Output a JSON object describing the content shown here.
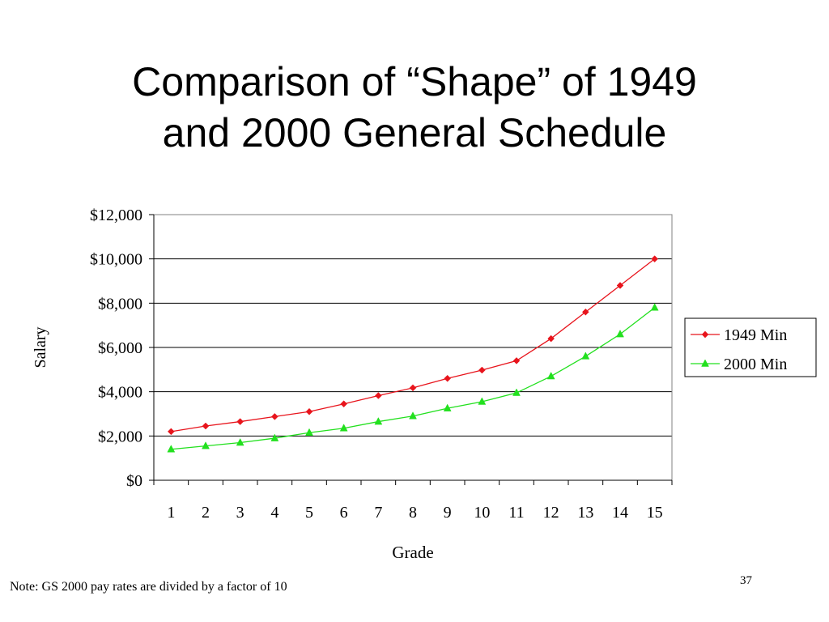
{
  "slide": {
    "title_lines": [
      "Comparison of “Shape” of 1949",
      "and 2000 General Schedule"
    ],
    "note": "Note:  GS 2000 pay rates are divided by a factor of 10",
    "page_number": "37"
  },
  "chart_data": {
    "type": "line",
    "title": "",
    "xlabel": "Grade",
    "ylabel": "Salary",
    "categories": [
      "1",
      "2",
      "3",
      "4",
      "5",
      "6",
      "7",
      "8",
      "9",
      "10",
      "11",
      "12",
      "13",
      "14",
      "15"
    ],
    "y_ticks": [
      "$0",
      "$2,000",
      "$4,000",
      "$6,000",
      "$8,000",
      "$10,000",
      "$12,000"
    ],
    "y_tick_values": [
      0,
      2000,
      4000,
      6000,
      8000,
      10000,
      12000
    ],
    "ylim": [
      0,
      12000
    ],
    "grid": "horizontal",
    "legend": "right",
    "series": [
      {
        "name": "1949 Min",
        "color": "#e8141c",
        "marker": "diamond",
        "values": [
          2200,
          2450,
          2650,
          2875,
          3100,
          3450,
          3825,
          4175,
          4600,
          4975,
          5400,
          6400,
          7600,
          8800,
          10000
        ]
      },
      {
        "name": "2000 Min",
        "color": "#22e01e",
        "marker": "triangle",
        "values": [
          1400,
          1550,
          1700,
          1900,
          2150,
          2350,
          2650,
          2900,
          3250,
          3550,
          3950,
          4700,
          5600,
          6600,
          7800
        ]
      }
    ]
  }
}
